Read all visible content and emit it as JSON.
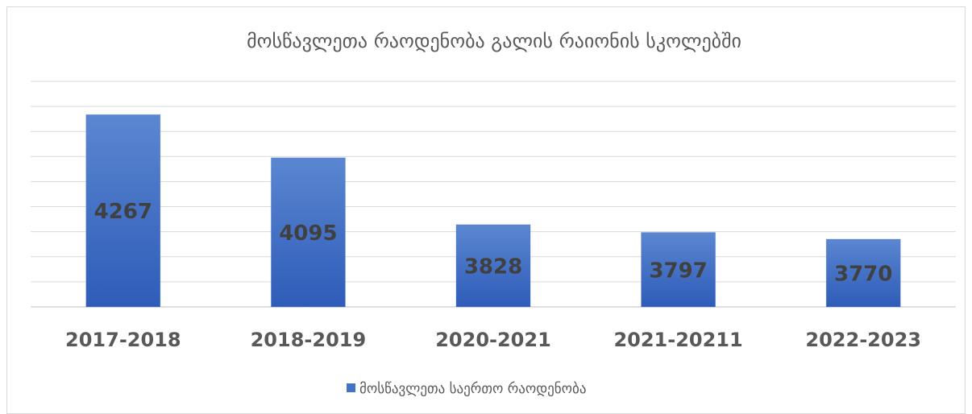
{
  "chart_data": {
    "type": "bar",
    "title": "მოსწავლეთა რაოდენობა გალის რაიონის სკოლებში",
    "categories": [
      "2017-2018",
      "2018-2019",
      "2020-2021",
      "2021-20211",
      "2022-2023"
    ],
    "series": [
      {
        "name": "მოსწავლეთა საერთო რაოდენობა",
        "color": "#4472c4",
        "values": [
          4267,
          4095,
          3828,
          3797,
          3770
        ]
      }
    ],
    "ylim": [
      3500,
      4400
    ],
    "yticks": [
      3500,
      3600,
      3700,
      3800,
      3900,
      4000,
      4100,
      4200,
      4300,
      4400
    ],
    "grid": true,
    "show_ytick_labels": false,
    "legend": "bottom"
  }
}
